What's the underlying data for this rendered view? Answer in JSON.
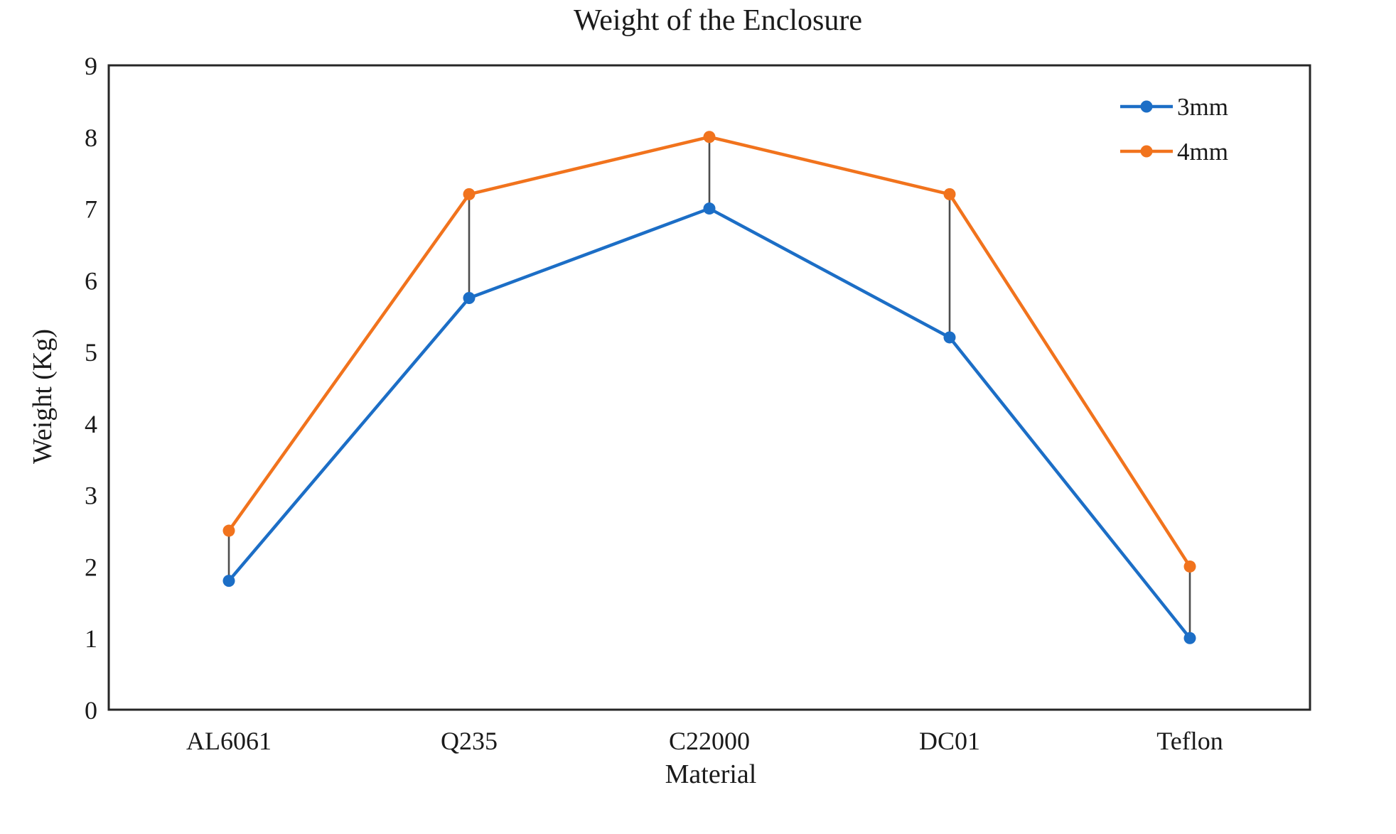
{
  "chart_data": {
    "type": "line",
    "title": "Weight of the Enclosure",
    "xlabel": "Material",
    "ylabel": "Weight (Kg)",
    "categories": [
      "AL6061",
      "Q235",
      "C22000",
      "DC01",
      "Teflon"
    ],
    "series": [
      {
        "name": "3mm",
        "color": "#1C6EC6",
        "values": [
          1.8,
          5.75,
          7.0,
          5.2,
          1.0
        ]
      },
      {
        "name": "4mm",
        "color": "#F1731D",
        "values": [
          2.5,
          7.2,
          8.0,
          7.2,
          2.0
        ]
      }
    ],
    "ylim": [
      0,
      9
    ],
    "ytick_step": 1,
    "yticks": [
      0,
      1,
      2,
      3,
      4,
      5,
      6,
      7,
      8,
      9
    ],
    "grid": false,
    "legend_position": "top-right-inside",
    "high_low_lines": true,
    "high_low_color": "#4D4D4D",
    "axis_color": "#262626",
    "text_color": "#1A1A1A",
    "marker": "circle"
  }
}
